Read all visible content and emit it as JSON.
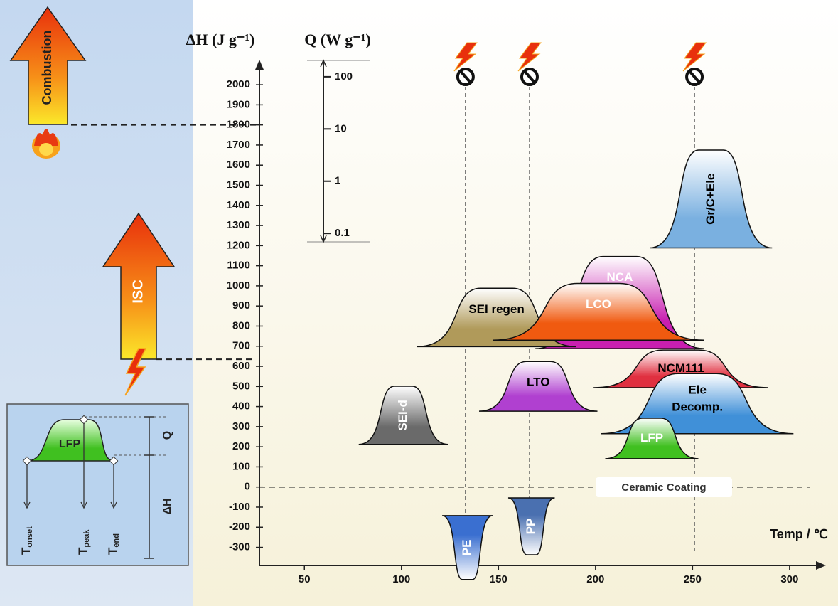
{
  "chart_data": {
    "type": "thermal-peaks",
    "y_label": "ΔH (J g⁻¹)",
    "q_label": "Q (W g⁻¹)",
    "x_label": "Temp / ℃",
    "xlim": [
      25,
      318
    ],
    "xticks": [
      50,
      100,
      150,
      200,
      250,
      300
    ],
    "ylim": [
      -390,
      2110
    ],
    "yticks": [
      -300,
      -200,
      -100,
      0,
      100,
      200,
      300,
      400,
      500,
      600,
      700,
      800,
      900,
      1000,
      1100,
      1200,
      1300,
      1400,
      1500,
      1600,
      1700,
      1800,
      1900,
      2000
    ],
    "qlim": [
      0.069,
      205
    ],
    "qticks": [
      0.1,
      1,
      10,
      100
    ],
    "q_log": true,
    "baseline": 0,
    "peaks": [
      {
        "name": "NCA",
        "color": "#c81fb0",
        "label_color": "#ffffff",
        "onset": 169,
        "end": 256,
        "base": 688,
        "top": 1146
      },
      {
        "name": "SEI regen",
        "color": "#b09a5a",
        "label_color": "#000000",
        "onset": 108,
        "end": 190,
        "base": 698,
        "top": 988
      },
      {
        "name": "LCO",
        "color": "#f05a10",
        "label_color": "#ffffff",
        "onset": 147,
        "end": 256,
        "base": 730,
        "top": 1012
      },
      {
        "name": "NCM111",
        "color": "#e03040",
        "label_color": "#000000",
        "onset": 199,
        "end": 289,
        "base": 494,
        "top": 681
      },
      {
        "name": [
          "Ele",
          "Decomp."
        ],
        "color": "#4090d8",
        "label_color": "#000000",
        "onset": 203,
        "end": 302,
        "base": 265,
        "top": 564
      },
      {
        "name": "LFP",
        "color": "#40c020",
        "label_color": "#ffffff",
        "onset": 205,
        "end": 253,
        "base": 141,
        "top": 342
      },
      {
        "name": "LTO",
        "color": "#b040d0",
        "label_color": "#000000",
        "onset": 140,
        "end": 201,
        "base": 377,
        "top": 624
      },
      {
        "name": "SEI-d",
        "color": "#6a6a6a",
        "label_color": "#ffffff",
        "vertical_label": true,
        "onset": 78,
        "end": 124,
        "base": 212,
        "top": 501
      },
      {
        "name": "Gr/C+Ele",
        "color": "#7ab0e0",
        "label_color": "#000000",
        "vertical_label": true,
        "onset": 228,
        "end": 291,
        "base": 1189,
        "top": 1675
      },
      {
        "name": "PE",
        "color": "#3a6fd0",
        "label_color": "#ffffff",
        "vertical_label": true,
        "onset": 121,
        "end": 147,
        "base": -142,
        "top": -460
      },
      {
        "name": "PP",
        "color": "#4a70b0",
        "label_color": "#ffffff",
        "vertical_label": true,
        "onset": 155,
        "end": 179,
        "base": -54,
        "top": -337
      }
    ],
    "shutdown_temps": [
      133,
      166,
      251
    ],
    "ceramic_label": "Ceramic Coating",
    "events": [
      {
        "label": "Combustion",
        "level": 1800
      },
      {
        "label": "ISC",
        "level": 635
      }
    ],
    "inset": {
      "peak": "LFP",
      "q": "Q",
      "dh": "ΔH",
      "t": [
        {
          "main": "T",
          "sub": "onset"
        },
        {
          "main": "T",
          "sub": "peak"
        },
        {
          "main": "T",
          "sub": "end"
        }
      ]
    }
  }
}
